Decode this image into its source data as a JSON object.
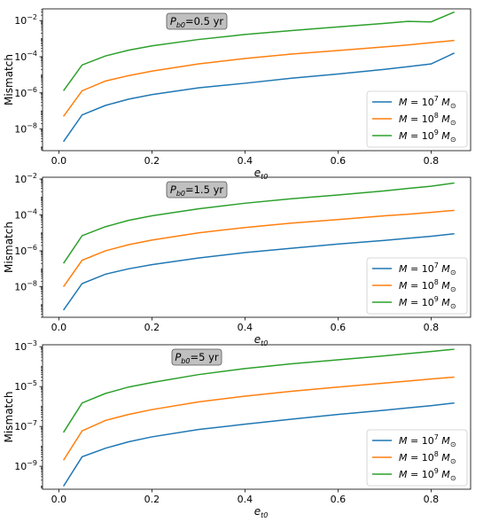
{
  "figure": {
    "ylabel_common": "Mismatch",
    "xlabel_main": "e",
    "xlabel_sub": "t0"
  },
  "chart_data": [
    {
      "type": "line",
      "title": "P_b0=0.5 yr",
      "annotation": {
        "main": "P",
        "sub": "b0",
        "rest": "=0.5 yr"
      },
      "x_ticks": [
        0.0,
        0.2,
        0.4,
        0.6,
        0.8
      ],
      "xlim": [
        -0.035,
        0.885
      ],
      "y_log": true,
      "ylim_exp": [
        -9.2,
        -1.35
      ],
      "y_ticks_exp": [
        -8,
        -6,
        -4,
        -2
      ],
      "legend_position": "lower right",
      "x": [
        0.01,
        0.05,
        0.1,
        0.15,
        0.2,
        0.3,
        0.4,
        0.5,
        0.6,
        0.7,
        0.75,
        0.8,
        0.85
      ],
      "series": [
        {
          "name": "M = 10^7 M_sun",
          "mass_exp": "7",
          "color": "#1f77b4",
          "values": [
            2e-09,
            6e-08,
            2e-07,
            4.5e-07,
            8e-07,
            1.9e-06,
            3.4e-06,
            6.5e-06,
            1.1e-05,
            2e-05,
            2.8e-05,
            4e-05,
            0.00016
          ]
        },
        {
          "name": "M = 10^8 M_sun",
          "mass_exp": "8",
          "color": "#ff7f0e",
          "values": [
            5e-08,
            1.3e-06,
            4.5e-06,
            9e-06,
            1.6e-05,
            4e-05,
            8e-05,
            0.00014,
            0.00022,
            0.00035,
            0.00045,
            0.0006,
            0.0008
          ]
        },
        {
          "name": "M = 10^9 M_sun",
          "mass_exp": "9",
          "color": "#2ca02c",
          "values": [
            1.3e-06,
            3.5e-05,
            0.00011,
            0.00023,
            0.0004,
            0.0009,
            0.0017,
            0.0028,
            0.0045,
            0.007,
            0.009,
            0.0085,
            0.03
          ]
        }
      ]
    },
    {
      "type": "line",
      "title": "P_b0=1.5 yr",
      "annotation": {
        "main": "P",
        "sub": "b0",
        "rest": "=1.5 yr"
      },
      "x_ticks": [
        0.0,
        0.2,
        0.4,
        0.6,
        0.8
      ],
      "xlim": [
        -0.035,
        0.885
      ],
      "y_log": true,
      "ylim_exp": [
        -9.7,
        -1.9
      ],
      "y_ticks_exp": [
        -8,
        -6,
        -4,
        -2
      ],
      "legend_position": "lower right",
      "x": [
        0.01,
        0.05,
        0.1,
        0.15,
        0.2,
        0.3,
        0.4,
        0.5,
        0.6,
        0.7,
        0.75,
        0.8,
        0.85
      ],
      "series": [
        {
          "name": "M = 10^7 M_sun",
          "mass_exp": "7",
          "color": "#1f77b4",
          "values": [
            5e-10,
            1.5e-08,
            5e-08,
            1e-07,
            1.7e-07,
            4e-07,
            8e-07,
            1.4e-06,
            2.4e-06,
            3.8e-06,
            5e-06,
            6.5e-06,
            9e-06
          ]
        },
        {
          "name": "M = 10^8 M_sun",
          "mass_exp": "8",
          "color": "#ff7f0e",
          "values": [
            1e-08,
            3e-07,
            1e-06,
            2.2e-06,
            4e-06,
            1e-05,
            2e-05,
            3.5e-05,
            5.5e-05,
            9e-05,
            0.00011,
            0.00014,
            0.00018
          ]
        },
        {
          "name": "M = 10^9 M_sun",
          "mass_exp": "9",
          "color": "#2ca02c",
          "values": [
            2e-07,
            7e-06,
            2.2e-05,
            5e-05,
            9e-05,
            0.00022,
            0.00045,
            0.0008,
            0.0013,
            0.0022,
            0.003,
            0.004,
            0.006
          ]
        }
      ]
    },
    {
      "type": "line",
      "title": "P_b0=5 yr",
      "annotation": {
        "main": "P",
        "sub": "b0",
        "rest": "=5 yr"
      },
      "x_ticks": [
        0.0,
        0.2,
        0.4,
        0.6,
        0.8
      ],
      "xlim": [
        -0.035,
        0.885
      ],
      "y_log": true,
      "ylim_exp": [
        -10.15,
        -2.9
      ],
      "y_ticks_exp": [
        -9,
        -7,
        -5,
        -3
      ],
      "legend_position": "lower right",
      "x": [
        0.01,
        0.05,
        0.1,
        0.15,
        0.2,
        0.3,
        0.4,
        0.5,
        0.6,
        0.7,
        0.75,
        0.8,
        0.85
      ],
      "series": [
        {
          "name": "M = 10^7 M_sun",
          "mass_exp": "7",
          "color": "#1f77b4",
          "values": [
            1e-10,
            3e-09,
            8e-09,
            1.7e-08,
            3e-08,
            7e-08,
            1.3e-07,
            2.3e-07,
            4e-07,
            6.5e-07,
            8.5e-07,
            1.1e-06,
            1.5e-06
          ]
        },
        {
          "name": "M = 10^8 M_sun",
          "mass_exp": "8",
          "color": "#ff7f0e",
          "values": [
            2e-09,
            6e-08,
            2e-07,
            4e-07,
            7e-07,
            1.7e-06,
            3.3e-06,
            5.8e-06,
            9.5e-06,
            1.5e-05,
            1.9e-05,
            2.4e-05,
            3e-05
          ]
        },
        {
          "name": "M = 10^9 M_sun",
          "mass_exp": "9",
          "color": "#2ca02c",
          "values": [
            5e-08,
            1.5e-06,
            4.5e-06,
            9.5e-06,
            1.6e-05,
            4e-05,
            8e-05,
            0.00014,
            0.00022,
            0.00035,
            0.00045,
            0.00058,
            0.00075
          ]
        }
      ]
    }
  ]
}
